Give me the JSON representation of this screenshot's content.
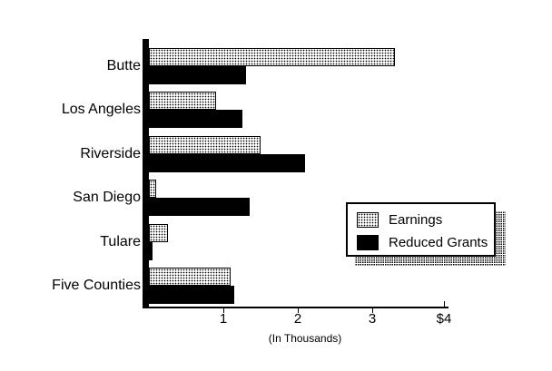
{
  "chart_data": {
    "type": "bar",
    "orientation": "horizontal",
    "categories": [
      "Butte",
      "Los Angeles",
      "Riverside",
      "San Diego",
      "Tulare",
      "Five Counties"
    ],
    "series": [
      {
        "name": "Earnings",
        "pattern": "stipple",
        "values": [
          3.3,
          0.9,
          1.5,
          0.1,
          0.25,
          1.1
        ]
      },
      {
        "name": "Reduced Grants",
        "pattern": "solid",
        "values": [
          1.3,
          1.25,
          2.1,
          1.35,
          0.05,
          1.15
        ]
      }
    ],
    "x_ticks": [
      {
        "value": 1,
        "label": "1"
      },
      {
        "value": 2,
        "label": "2"
      },
      {
        "value": 3,
        "label": "3"
      },
      {
        "value": 4,
        "label": "$4"
      }
    ],
    "xlim": [
      0,
      4
    ],
    "xlabel": "(In Thousands)",
    "ylabel": "",
    "title": "",
    "grid": false,
    "legend": {
      "position": "middle-right",
      "entries": [
        "Earnings",
        "Reduced Grants"
      ]
    },
    "colors": {
      "foreground": "#000000",
      "background": "#ffffff"
    }
  }
}
